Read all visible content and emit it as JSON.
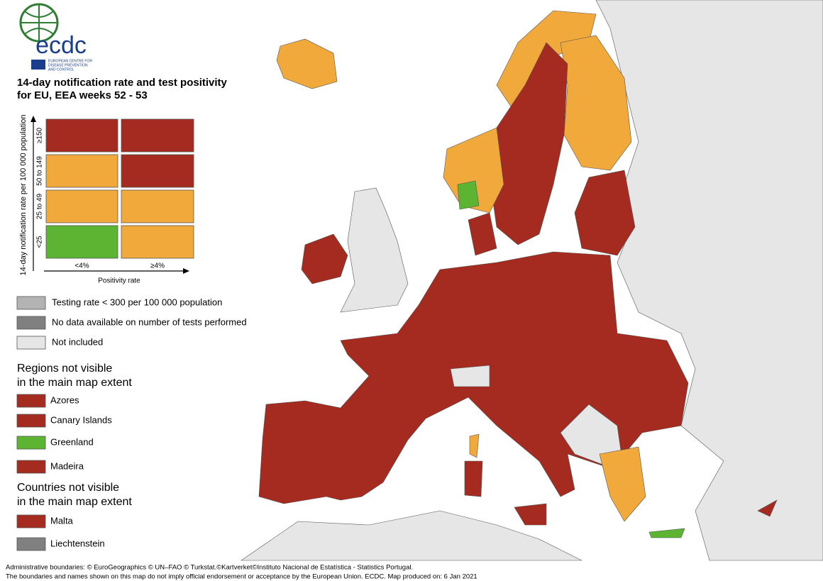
{
  "logo": {
    "name": "ecdc",
    "subtitle": [
      "EUROPEAN CENTRE FOR",
      "DISEASE PREVENTION",
      "AND CONTROL"
    ]
  },
  "title": [
    "14-day notification rate and test positivity",
    "for EU, EEA weeks 52 - 53"
  ],
  "matrix": {
    "y_label": "14-day notification rate per 100 000 population",
    "x_label": "Positivity rate",
    "columns": [
      "<4%",
      "≥4%"
    ],
    "rows": [
      {
        "label": "≥150",
        "colors": [
          "#a52a1f",
          "#a52a1f"
        ]
      },
      {
        "label": "50 to 149",
        "colors": [
          "#f2a93b",
          "#a52a1f"
        ]
      },
      {
        "label": "25 to 49",
        "colors": [
          "#f2a93b",
          "#f2a93b"
        ]
      },
      {
        "label": "<25",
        "colors": [
          "#5db332",
          "#f2a93b"
        ]
      }
    ]
  },
  "legend": [
    {
      "label": "Testing rate < 300 per 100 000 population",
      "color": "#b3b3b3"
    },
    {
      "label": "No data available on number of tests performed",
      "color": "#808080"
    },
    {
      "label": "Not included",
      "color": "#e6e6e6"
    }
  ],
  "regions": {
    "title": [
      "Regions not visible",
      "in the main map extent"
    ],
    "items": [
      {
        "label": "Azores",
        "color": "#a52a1f"
      },
      {
        "label": "Canary Islands",
        "color": "#a52a1f"
      },
      {
        "label": "Greenland",
        "color": "#5db332"
      },
      {
        "label": "Madeira",
        "color": "#a52a1f"
      }
    ]
  },
  "countries": {
    "title": [
      "Countries not visible",
      "in the main map extent"
    ],
    "items": [
      {
        "label": "Malta",
        "color": "#a52a1f"
      },
      {
        "label": "Liechtenstein",
        "color": "#808080"
      }
    ]
  },
  "footer": [
    "Administrative boundaries: © EuroGeographics © UN–FAO © Turkstat.©Kartverket©Instituto Nacional de Estatística - Statistics Portugal.",
    "The boundaries and names shown on this map do not imply official endorsement or acceptance by the European Union. ECDC. Map produced on: 6 Jan 2021"
  ]
}
